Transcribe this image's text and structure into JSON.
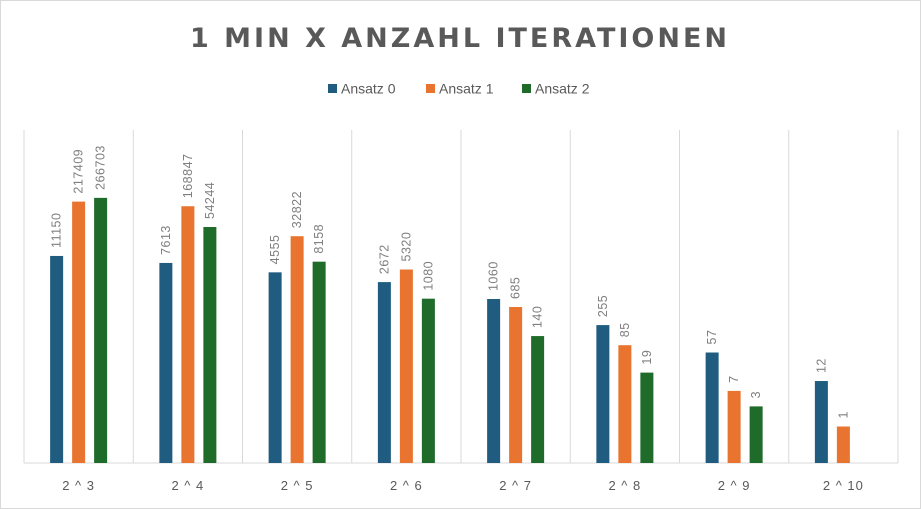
{
  "chart_data": {
    "type": "bar",
    "title": "1 MIN X ANZAHL ITERATIONEN",
    "categories": [
      "2 ^ 3",
      "2 ^ 4",
      "2 ^ 5",
      "2 ^ 6",
      "2 ^ 7",
      "2 ^ 8",
      "2 ^ 9",
      "2 ^ 10"
    ],
    "series": [
      {
        "name": "Ansatz 0",
        "color": "#1f5c7f",
        "values": [
          11150,
          7613,
          4555,
          2672,
          1060,
          255,
          57,
          12
        ]
      },
      {
        "name": "Ansatz 1",
        "color": "#e8742f",
        "values": [
          217409,
          168847,
          32822,
          5320,
          685,
          85,
          7,
          1
        ]
      },
      {
        "name": "Ansatz 2",
        "color": "#1e6b2a",
        "values": [
          266703,
          54244,
          8158,
          1080,
          140,
          19,
          3,
          null
        ]
      }
    ],
    "y_scale": "log",
    "gridlines": "vertical",
    "legend_position": "top"
  }
}
